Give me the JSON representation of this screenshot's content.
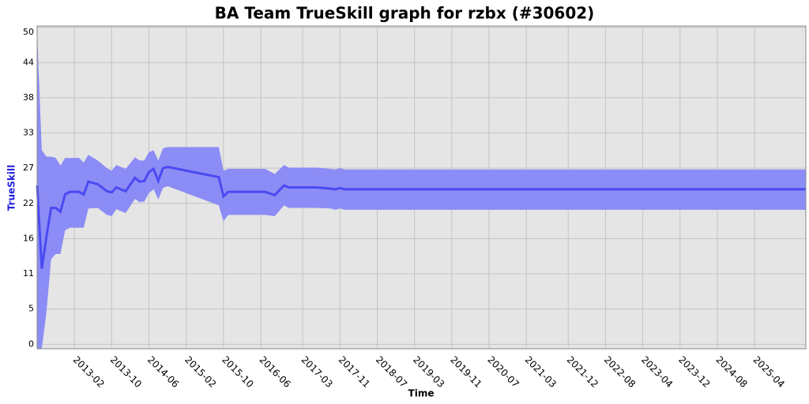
{
  "chart_data": {
    "type": "band-line",
    "title": "BA Team TrueSkill graph for rzbx (#30602)",
    "x_label": "Time",
    "y_label": "TrueSkill",
    "x": [
      "2012-06",
      "2012-07",
      "2012-08",
      "2012-09",
      "2012-10",
      "2012-11",
      "2012-12",
      "2013-01",
      "2013-03",
      "2013-04",
      "2013-05",
      "2013-07",
      "2013-09",
      "2013-10",
      "2013-11",
      "2014-01",
      "2014-03",
      "2014-04",
      "2014-05",
      "2014-06",
      "2014-07",
      "2014-08",
      "2014-09",
      "2014-10",
      "2015-09",
      "2015-10",
      "2015-11",
      "2016-07",
      "2016-09",
      "2016-11",
      "2016-12",
      "2017-06",
      "2017-09",
      "2017-10",
      "2017-11",
      "2017-12",
      "2026-03"
    ],
    "series": [
      {
        "color": "#4a4af2",
        "values": [
          24.8,
          11.8,
          16.8,
          21.3,
          21.3,
          20.7,
          23.4,
          23.8,
          23.8,
          23.4,
          25.4,
          25.0,
          23.9,
          23.7,
          24.5,
          23.9,
          26.0,
          25.4,
          25.5,
          26.9,
          27.4,
          25.5,
          27.5,
          27.7,
          26.1,
          23.1,
          23.8,
          23.8,
          23.3,
          24.8,
          24.5,
          24.5,
          24.3,
          24.2,
          24.4,
          24.2,
          24.2
        ]
      }
    ],
    "band": {
      "color": "#8c8cf6",
      "upper": [
        48.7,
        30.3,
        29.3,
        29.3,
        29.1,
        27.9,
        29.1,
        29.1,
        29.1,
        28.4,
        29.6,
        28.7,
        27.5,
        27.1,
        28.0,
        27.4,
        29.2,
        28.7,
        28.7,
        30.0,
        30.3,
        28.7,
        30.6,
        30.8,
        30.8,
        27.1,
        27.4,
        27.4,
        26.6,
        28.0,
        27.6,
        27.6,
        27.4,
        27.3,
        27.5,
        27.3,
        27.3
      ],
      "lower": [
        -0.7,
        -0.7,
        5.0,
        13.3,
        14.1,
        14.1,
        17.8,
        18.2,
        18.2,
        18.2,
        21.2,
        21.3,
        20.2,
        20.0,
        21.1,
        20.5,
        22.7,
        22.2,
        22.3,
        23.6,
        24.2,
        22.6,
        24.4,
        24.7,
        21.7,
        19.2,
        20.2,
        20.2,
        20.0,
        21.7,
        21.3,
        21.3,
        21.2,
        21.0,
        21.2,
        21.0,
        21.0
      ]
    },
    "xlim": [
      "2012-06",
      "2026-03"
    ],
    "xticks": [
      "2013-02",
      "2013-10",
      "2014-06",
      "2015-02",
      "2015-10",
      "2016-06",
      "2017-03",
      "2017-11",
      "2018-07",
      "2019-03",
      "2019-11",
      "2020-07",
      "2021-03",
      "2021-12",
      "2022-08",
      "2023-04",
      "2023-12",
      "2024-08",
      "2025-04"
    ],
    "ylim": [
      -0.7,
      49.7
    ],
    "yticks": [
      0,
      {
        "value": 5.5,
        "label": "5"
      },
      11,
      {
        "value": 16.5,
        "label": "16"
      },
      22,
      {
        "value": 27.5,
        "label": "27"
      },
      33,
      {
        "value": 38.5,
        "label": "38"
      },
      44,
      {
        "value": 49.5,
        "label": "50"
      }
    ],
    "grid": true
  }
}
